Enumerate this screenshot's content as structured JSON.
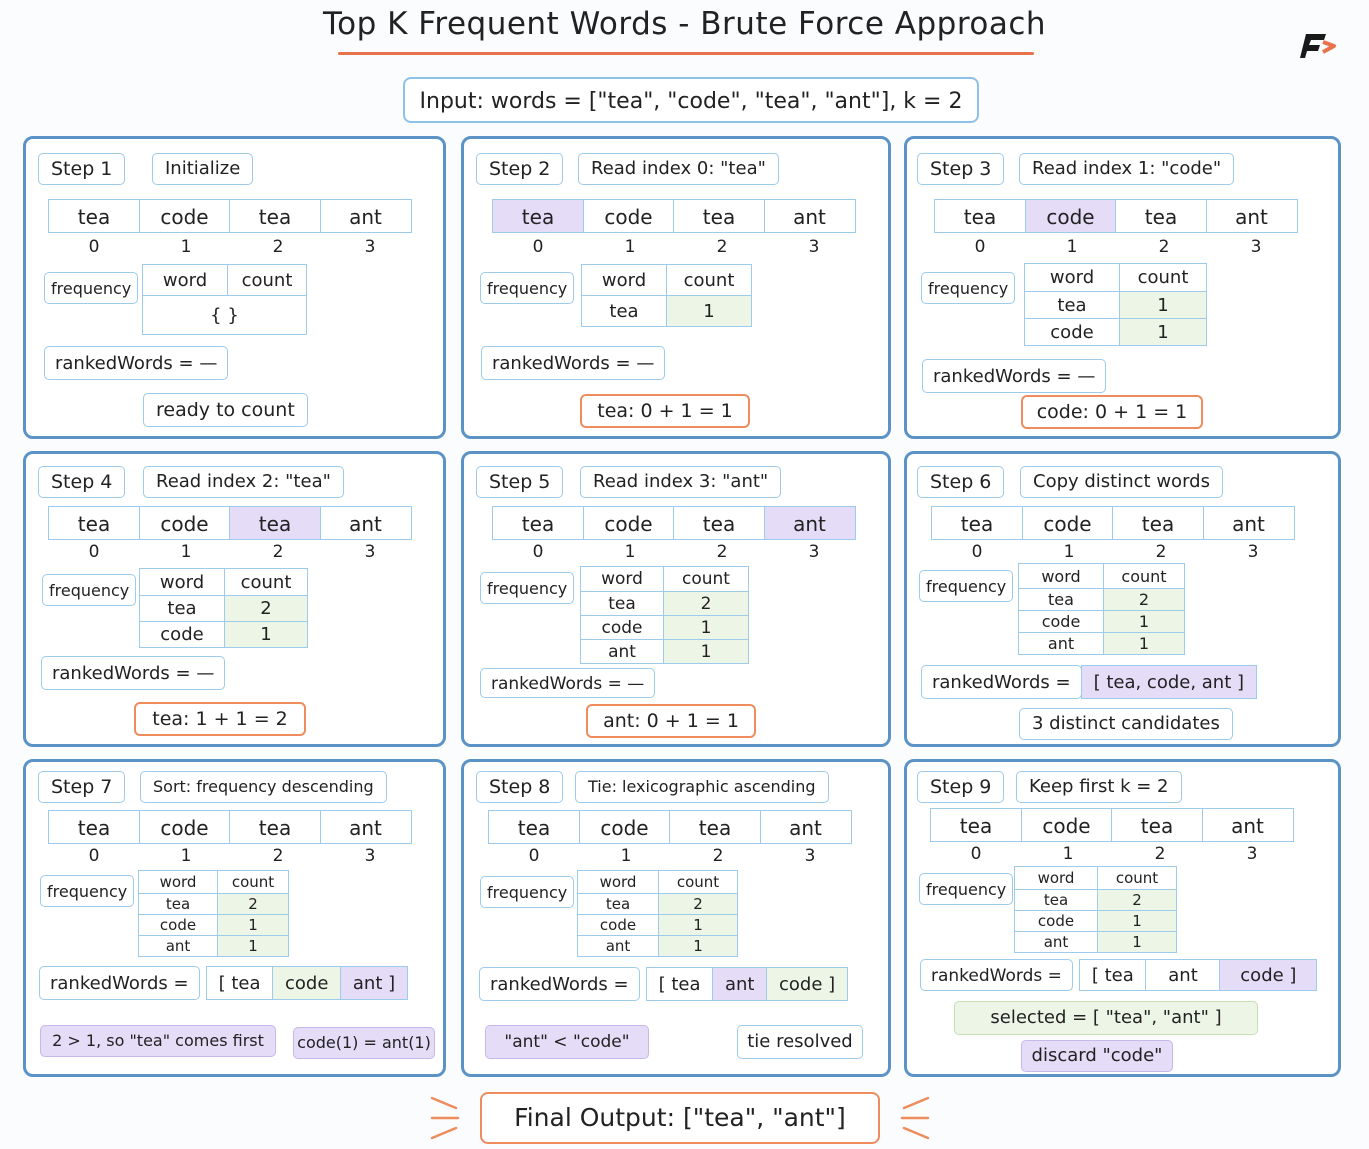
{
  "title": "Top K Frequent Words - Brute Force Approach",
  "input": "Input: words = [\"tea\", \"code\", \"tea\", \"ant\"], k = 2",
  "indices": [
    "0",
    "1",
    "2",
    "3"
  ],
  "labels": {
    "frequency": "frequency",
    "word": "word",
    "count": "count",
    "ranked": "rankedWords ="
  },
  "steps": [
    {
      "step": "Step 1",
      "action": "Initialize",
      "cells": [
        "tea",
        "code",
        "tea",
        "ant"
      ],
      "freq_empty": "{ }",
      "ranked_value": "—",
      "bottom": "ready to count"
    },
    {
      "step": "Step 2",
      "action": "Read index 0: \"tea\"",
      "cells": [
        "tea",
        "code",
        "tea",
        "ant"
      ],
      "freq": [
        [
          "tea",
          "1"
        ]
      ],
      "ranked_value": "—",
      "bottom": "tea: 0 + 1 = 1"
    },
    {
      "step": "Step 3",
      "action": "Read index 1: \"code\"",
      "cells": [
        "tea",
        "code",
        "tea",
        "ant"
      ],
      "freq": [
        [
          "tea",
          "1"
        ],
        [
          "code",
          "1"
        ]
      ],
      "ranked_value": "—",
      "bottom": "code: 0 + 1 = 1"
    },
    {
      "step": "Step 4",
      "action": "Read index 2: \"tea\"",
      "cells": [
        "tea",
        "code",
        "tea",
        "ant"
      ],
      "freq": [
        [
          "tea",
          "2"
        ],
        [
          "code",
          "1"
        ]
      ],
      "ranked_value": "—",
      "bottom": "tea: 1 + 1 = 2"
    },
    {
      "step": "Step 5",
      "action": "Read index 3: \"ant\"",
      "cells": [
        "tea",
        "code",
        "tea",
        "ant"
      ],
      "freq": [
        [
          "tea",
          "2"
        ],
        [
          "code",
          "1"
        ],
        [
          "ant",
          "1"
        ]
      ],
      "ranked_value": "—",
      "bottom": "ant: 0 + 1 = 1"
    },
    {
      "step": "Step 6",
      "action": "Copy distinct words",
      "cells": [
        "tea",
        "code",
        "tea",
        "ant"
      ],
      "freq": [
        [
          "tea",
          "2"
        ],
        [
          "code",
          "1"
        ],
        [
          "ant",
          "1"
        ]
      ],
      "ranked_list": "[ tea, code, ant ]",
      "bottom": "3 distinct candidates"
    },
    {
      "step": "Step 7",
      "action": "Sort: frequency descending",
      "cells": [
        "tea",
        "code",
        "tea",
        "ant"
      ],
      "freq": [
        [
          "tea",
          "2"
        ],
        [
          "code",
          "1"
        ],
        [
          "ant",
          "1"
        ]
      ],
      "ranked_items": [
        "[ tea",
        "code",
        "ant ]"
      ],
      "note_left": "2 > 1, so \"tea\" comes first",
      "note_right": "code(1) = ant(1)"
    },
    {
      "step": "Step 8",
      "action": "Tie: lexicographic ascending",
      "cells": [
        "tea",
        "code",
        "tea",
        "ant"
      ],
      "freq": [
        [
          "tea",
          "2"
        ],
        [
          "code",
          "1"
        ],
        [
          "ant",
          "1"
        ]
      ],
      "ranked_items": [
        "[ tea",
        "ant",
        "code ]"
      ],
      "note_left": "\"ant\" < \"code\"",
      "note_right": "tie resolved"
    },
    {
      "step": "Step 9",
      "action": "Keep first k = 2",
      "cells": [
        "tea",
        "code",
        "tea",
        "ant"
      ],
      "freq": [
        [
          "tea",
          "2"
        ],
        [
          "code",
          "1"
        ],
        [
          "ant",
          "1"
        ]
      ],
      "ranked_items": [
        "[ tea",
        "ant",
        "code ]"
      ],
      "selected": "selected = [ \"tea\", \"ant\" ]",
      "discard": "discard \"code\""
    }
  ],
  "final": "Final Output: [\"tea\", \"ant\"]",
  "colors": {
    "panel_border": "#5b93c7",
    "accent": "#e8734a",
    "highlight": "#e5dcf7",
    "count_bg": "#edf5e6"
  }
}
